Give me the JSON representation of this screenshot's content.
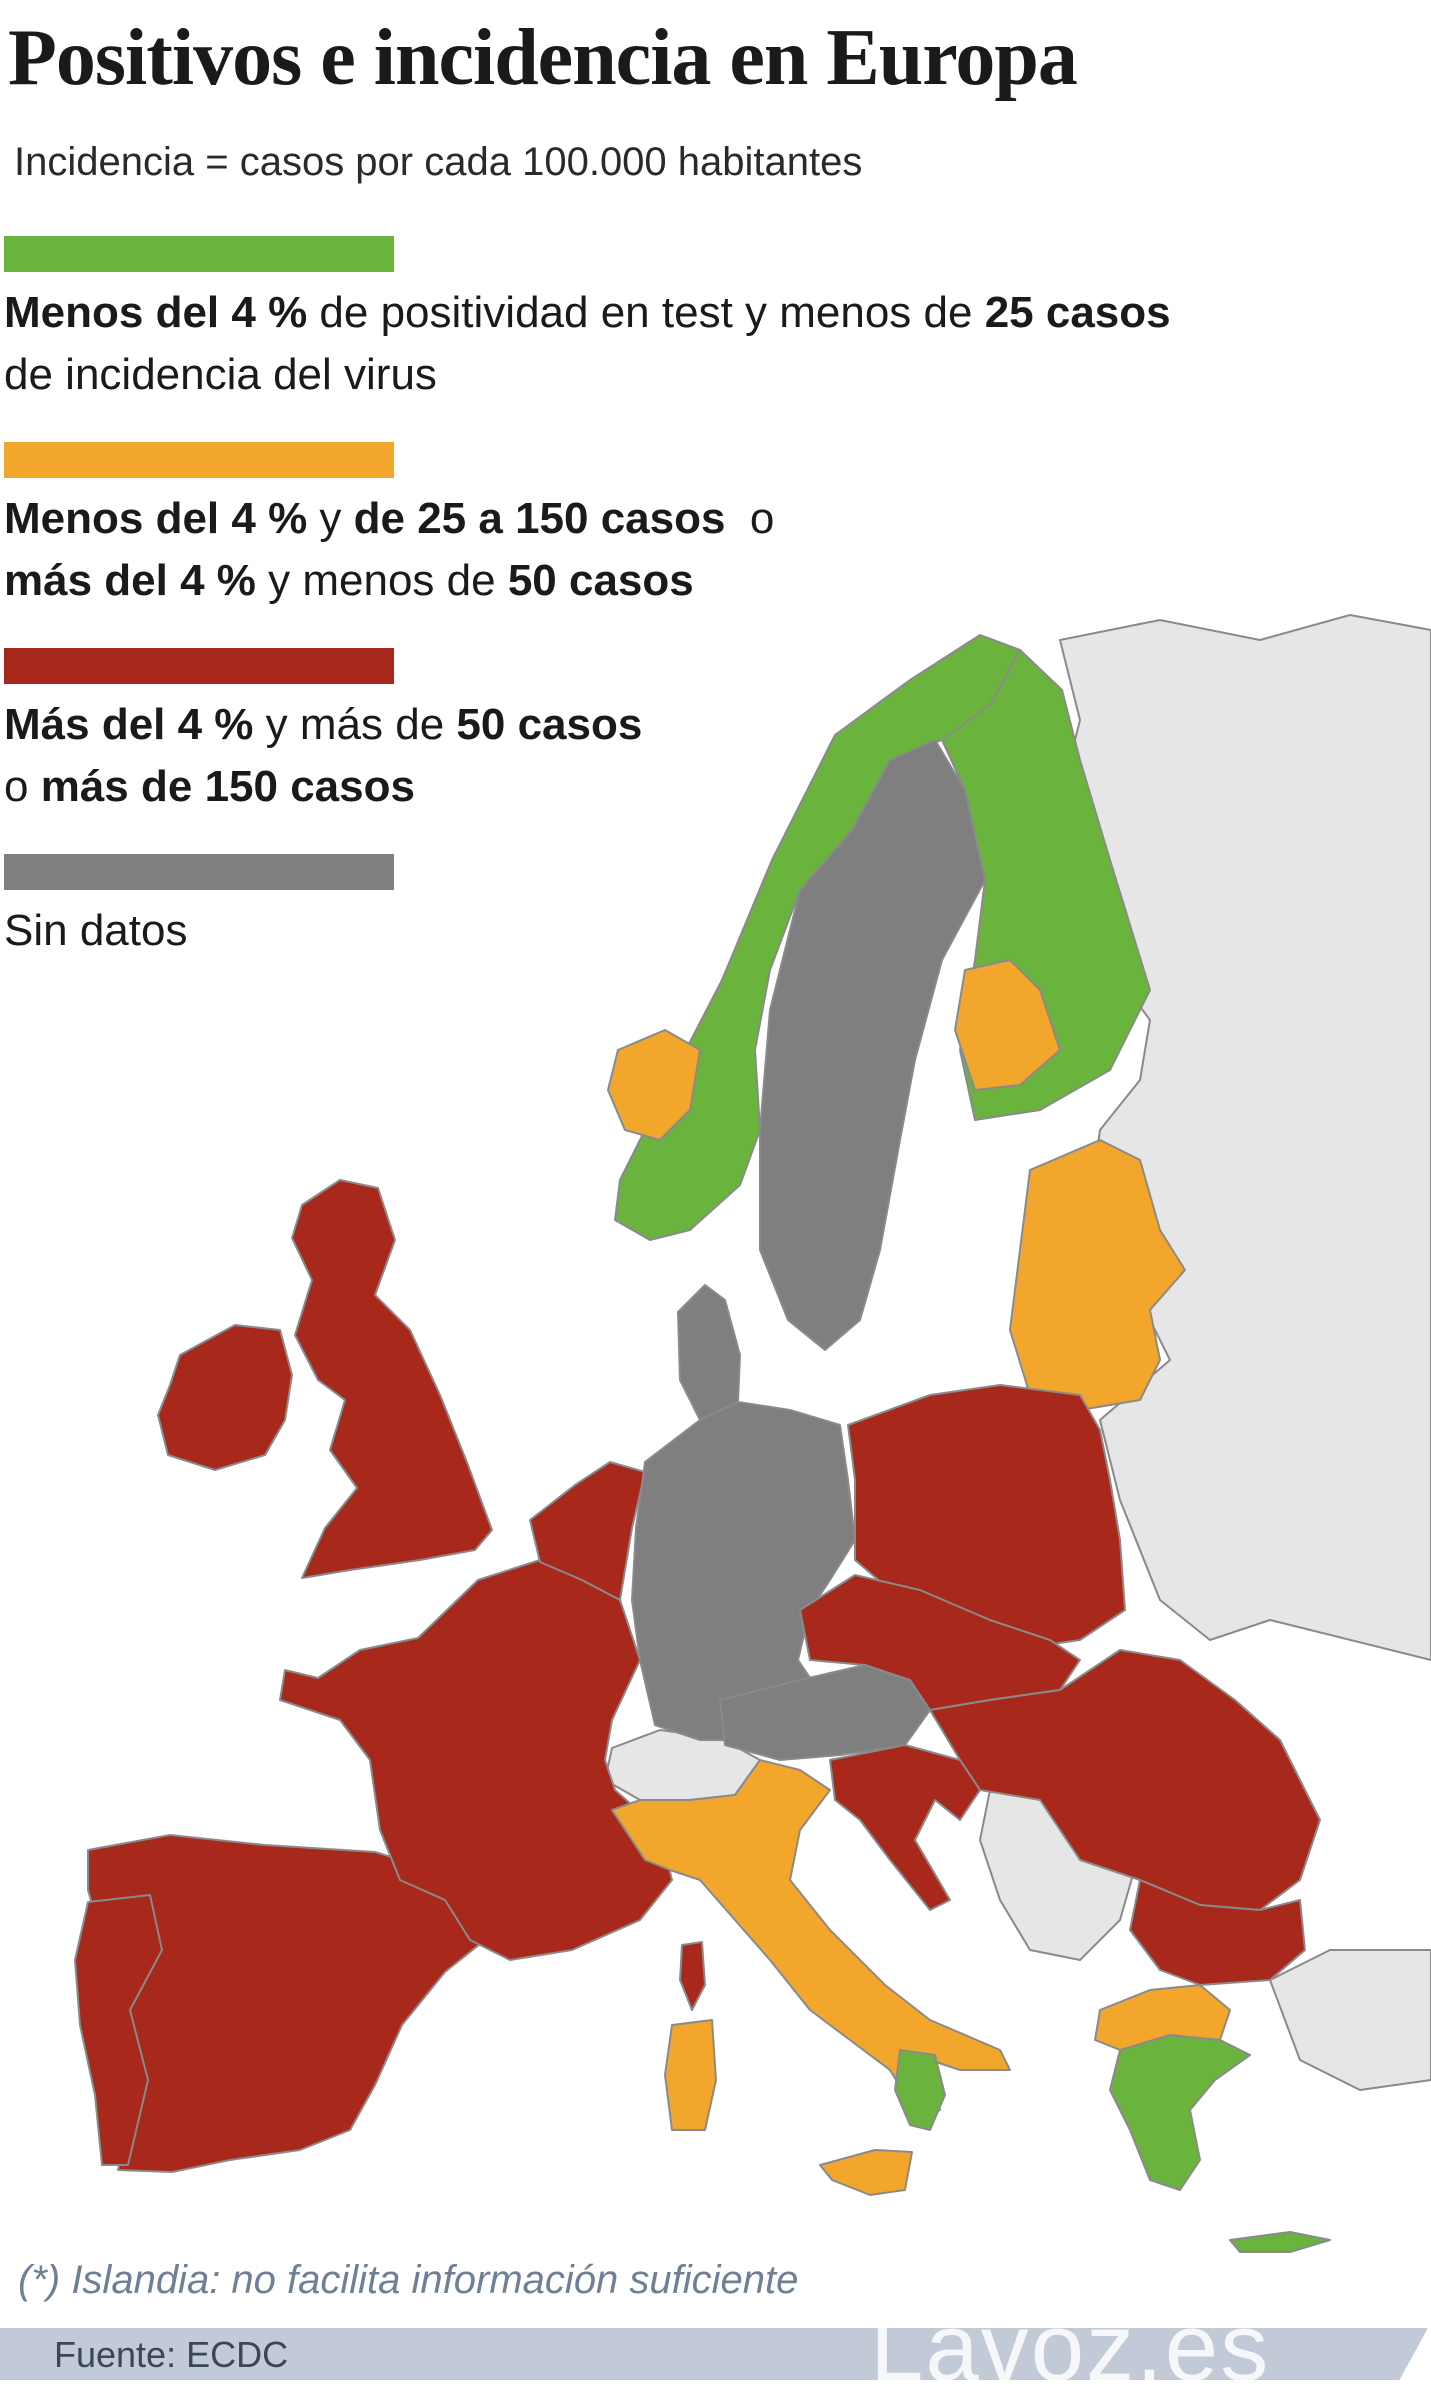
{
  "title": "Positivos e incidencia en Europa",
  "subtitle": "Incidencia = casos por cada 100.000 habitantes",
  "colors": {
    "green": "#6ab43e",
    "orange": "#f2a72c",
    "red": "#a8281c",
    "gray": "#7f7f7f",
    "nonmember": "#e6e6e6",
    "sea": "#ffffff"
  },
  "legend": {
    "green": {
      "line1": {
        "b1": "Menos del 4 %",
        "t1": " de positividad en test y menos de ",
        "b2": "25 casos"
      },
      "line2": "de incidencia del virus"
    },
    "orange": {
      "line1": {
        "b1": "Menos del 4 %",
        "t1": " y ",
        "b2": "de 25 a 150 casos",
        "t2": "  o"
      },
      "line2": {
        "b1": "más del 4 %",
        "t1": " y menos de ",
        "b2": "50 casos"
      }
    },
    "red": {
      "line1": {
        "b1": "Más del 4 %",
        "t1": " y más de ",
        "b2": "50 casos"
      },
      "line2": {
        "t1": "o ",
        "b1": "más de 150 casos"
      }
    },
    "gray": {
      "line1": "Sin datos"
    }
  },
  "map": {
    "regions": [
      {
        "name": "Noruega",
        "category": "green"
      },
      {
        "name": "Finlandia",
        "category": "green"
      },
      {
        "name": "Suecia",
        "category": "gray"
      },
      {
        "name": "Dinamarca",
        "category": "gray"
      },
      {
        "name": "Alemania",
        "category": "gray"
      },
      {
        "name": "Austria",
        "category": "gray"
      },
      {
        "name": "Estonia",
        "category": "orange"
      },
      {
        "name": "Letonia",
        "category": "orange"
      },
      {
        "name": "Lituania",
        "category": "orange"
      },
      {
        "name": "Irlanda",
        "category": "red"
      },
      {
        "name": "Reino Unido",
        "category": "red"
      },
      {
        "name": "Países Bajos",
        "category": "red"
      },
      {
        "name": "Bélgica",
        "category": "red"
      },
      {
        "name": "Luxemburgo",
        "category": "red"
      },
      {
        "name": "Francia",
        "category": "red"
      },
      {
        "name": "España",
        "category": "red"
      },
      {
        "name": "Portugal",
        "category": "red"
      },
      {
        "name": "Polonia",
        "category": "red"
      },
      {
        "name": "Chequia",
        "category": "red"
      },
      {
        "name": "Eslovaquia",
        "category": "red"
      },
      {
        "name": "Hungría",
        "category": "red"
      },
      {
        "name": "Eslovenia",
        "category": "red"
      },
      {
        "name": "Croacia",
        "category": "red"
      },
      {
        "name": "Rumanía",
        "category": "red"
      },
      {
        "name": "Bulgaria",
        "category": "red"
      },
      {
        "name": "Italia",
        "category": "orange"
      },
      {
        "name": "Córcega",
        "category": "red"
      },
      {
        "name": "Cerdeña",
        "category": "orange"
      },
      {
        "name": "Sicilia",
        "category": "orange"
      },
      {
        "name": "Grecia",
        "category": "green"
      },
      {
        "name": "Malta",
        "category": "orange"
      }
    ]
  },
  "footnote": "(*) Islandia: no facilita información suficiente",
  "source": "Fuente: ECDC",
  "brand": "Lavoz.es"
}
